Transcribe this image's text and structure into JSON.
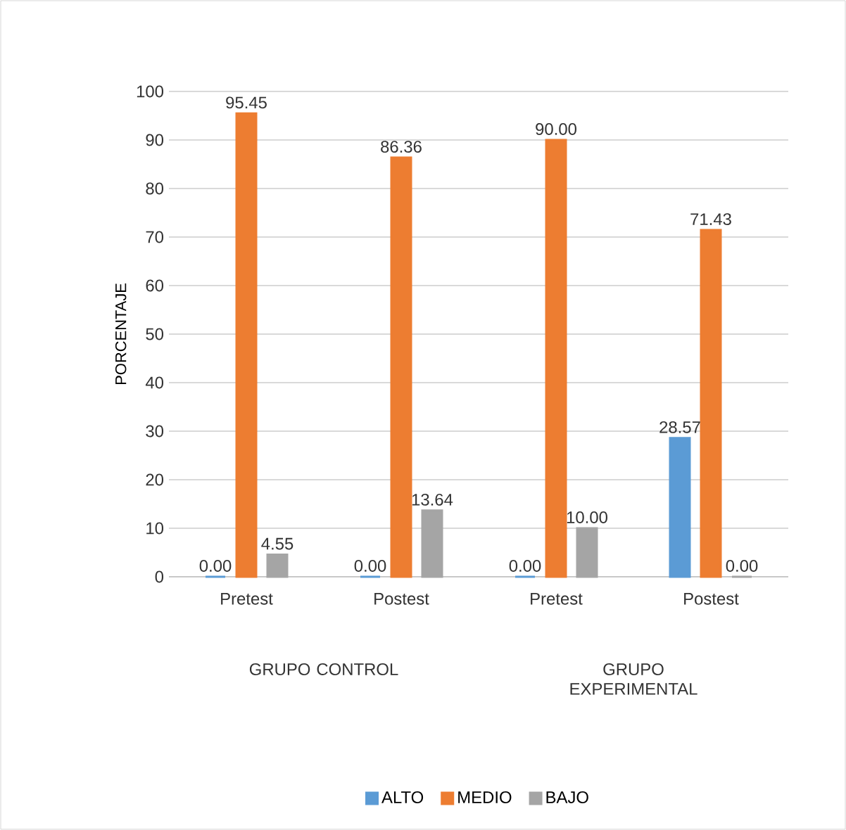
{
  "chart_data": {
    "type": "bar",
    "ylabel": "PORCENTAJE",
    "categories": [
      "Pretest",
      "Postest",
      "Pretest",
      "Postest"
    ],
    "annotations": [
      "GRUPO CONTROL",
      "GRUPO EXPERIMENTAL"
    ],
    "series": [
      {
        "name": "ALTO",
        "color": "#5b9bd5",
        "values": [
          0,
          0,
          0,
          28.57
        ],
        "value_labels": [
          "0.00",
          "0.00",
          "0.00",
          "28.57"
        ]
      },
      {
        "name": "MEDIO",
        "color": "#ed7d31",
        "values": [
          95.45,
          86.36,
          90,
          71.43
        ],
        "value_labels": [
          "95.45",
          "86.36",
          "90.00",
          "71.43"
        ]
      },
      {
        "name": "BAJO",
        "color": "#a5a5a5",
        "values": [
          4.55,
          13.64,
          10,
          0
        ],
        "value_labels": [
          "4.55",
          "13.64",
          "10.00",
          "0.00"
        ]
      }
    ],
    "ylim": [
      0,
      100
    ],
    "yticks": [
      0,
      10,
      20,
      30,
      40,
      50,
      60,
      70,
      80,
      90,
      100
    ],
    "grid": "y",
    "legend": "bottom"
  }
}
